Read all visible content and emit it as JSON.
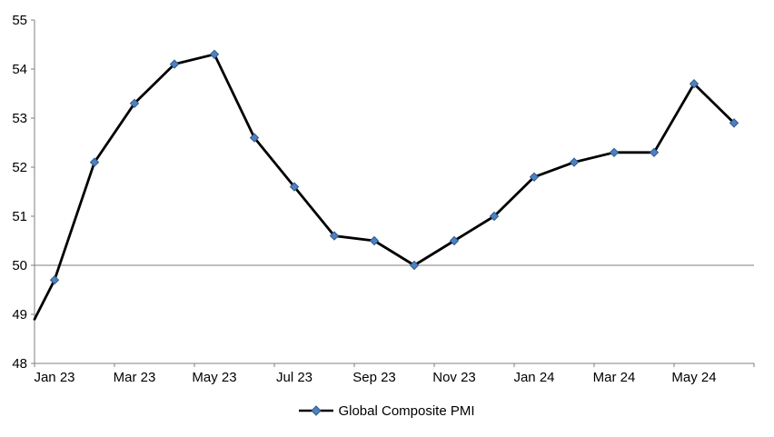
{
  "chart_data": {
    "type": "line",
    "series": [
      {
        "name": "Global Composite PMI",
        "x": [
          "Jan 23",
          "Feb 23",
          "Mar 23",
          "Apr 23",
          "May 23",
          "Jun 23",
          "Jul 23",
          "Aug 23",
          "Sep 23",
          "Oct 23",
          "Nov 23",
          "Dec 23",
          "Jan 24",
          "Feb 24",
          "Mar 24",
          "Apr 24",
          "May 24",
          "Jun 24"
        ],
        "values": [
          49.7,
          52.1,
          53.3,
          54.1,
          54.3,
          52.6,
          51.6,
          50.6,
          50.5,
          50.0,
          50.5,
          51.0,
          51.8,
          52.1,
          52.3,
          52.3,
          53.7,
          52.9
        ]
      }
    ],
    "lead_in_value_at_axis": 48.9,
    "x_tick_labels": [
      "Jan 23",
      "Mar 23",
      "May 23",
      "Jul 23",
      "Sep 23",
      "Nov 23",
      "Jan 24",
      "Mar 24",
      "May 24"
    ],
    "x_label_interval": 2,
    "y_ticks": [
      48,
      49,
      50,
      51,
      52,
      53,
      54,
      55
    ],
    "ylim": [
      48,
      55
    ],
    "reference_line_y": 50,
    "grid": "off",
    "legend": {
      "label": "Global Composite PMI",
      "position": "bottom-center"
    },
    "colors": {
      "line": "#000000",
      "marker": "#4F81BD",
      "marker_edge": "#2E5A8F",
      "axis": "#7F7F7F",
      "reference_line": "#7F7F7F",
      "text": "#000000"
    }
  }
}
